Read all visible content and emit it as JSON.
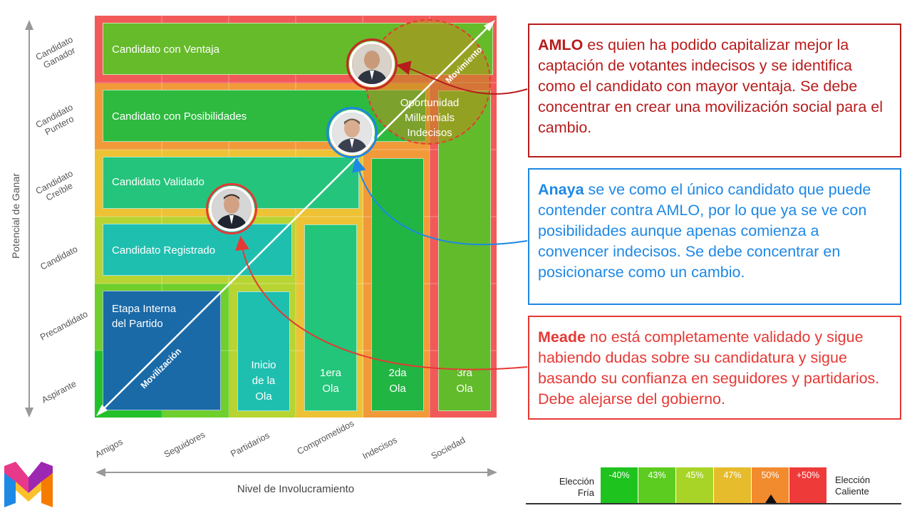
{
  "axes": {
    "y_title": "Potencial de Ganar",
    "x_title": "Nivel de Involucramiento",
    "y_levels": [
      [
        "Candidato",
        "Ganador"
      ],
      [
        "Candidato",
        "Puntero"
      ],
      [
        "Candidato",
        "Creíble"
      ],
      [
        "Candidato"
      ],
      [
        "Precandidato"
      ],
      [
        "Aspirante"
      ]
    ],
    "x_levels": [
      "Amigos",
      "Seguidores",
      "Partidarios",
      "Comprometidos",
      "Indecisos",
      "Sociedad"
    ]
  },
  "stages": {
    "ventaja": "Candidato con Ventaja",
    "posibilidades": "Candidato con Posibilidades",
    "validado": "Candidato Validado",
    "registrado": "Candidato Registrado",
    "interna_l1": "Etapa Interna",
    "interna_l2": "del Partido"
  },
  "waves": {
    "inicio": [
      "Inicio",
      "de la",
      "Ola"
    ],
    "primera": [
      "1era",
      "Ola"
    ],
    "segunda": [
      "2da",
      "Ola"
    ],
    "tercera": [
      "3ra",
      "Ola"
    ]
  },
  "diagonal": {
    "movilizacion": "Movilización",
    "movimiento": "Movimiento"
  },
  "opportunity": [
    "Oportunidad",
    "Millennials",
    "Indecisos"
  ],
  "callouts": {
    "amlo": {
      "name": "AMLO",
      "text": " es quien ha podido capitalizar mejor la captación de votantes indecisos y se identifica como el candidato con mayor ventaja. Se debe concentrar en crear una movilización social para el cambio.",
      "color": "#b71c1c"
    },
    "anaya": {
      "name": "Anaya",
      "text": " se ve como el único candidato que puede contender contra AMLO, por lo que ya se ve con posibilidades aunque apenas comienza a convencer indecisos. Se debe concentrar en posicionarse como un cambio.",
      "color": "#1e88e5"
    },
    "meade": {
      "name": "Meade",
      "text": " no está completamente validado y sigue habiendo dudas sobre su candidatura y sigue basando su confianza en seguidores y partidarios. Debe alejarse del gobierno.",
      "color": "#e53935"
    }
  },
  "legend": {
    "left": [
      "Elección",
      "Fría"
    ],
    "right": [
      "Elección",
      "Caliente"
    ],
    "cells": [
      {
        "label": "-40%",
        "color": "#1ec31e"
      },
      {
        "label": "43%",
        "color": "#5ccc20"
      },
      {
        "label": "45%",
        "color": "#a8d428"
      },
      {
        "label": "47%",
        "color": "#e6bb2c"
      },
      {
        "label": "50%",
        "color": "#f28a2e"
      },
      {
        "label": "+50%",
        "color": "#ef3a3a"
      }
    ],
    "marker_index": 4
  },
  "colors": {
    "ventaja": "#66bb2a",
    "posibilidades": "#2dba3e",
    "validado": "#25c47c",
    "registrado": "#1fbfb0",
    "interna": "#1a6aa8",
    "amlo_ring": "#c62828",
    "anaya_ring": "#1e88e5",
    "meade_ring": "#e53935"
  }
}
